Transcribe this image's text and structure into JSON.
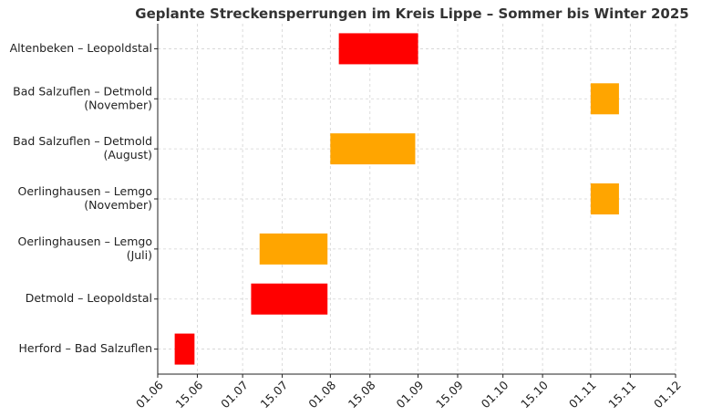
{
  "chart_data": {
    "type": "gantt",
    "title": "Geplante Streckensperrungen im Kreis Lippe – Sommer bis Winter 2025",
    "xlabel": "",
    "ylabel": "",
    "xlim": [
      "2025-06-01",
      "2025-12-01"
    ],
    "x_ticks": [
      "01.06",
      "15.06",
      "01.07",
      "15.07",
      "01.08",
      "15.08",
      "01.09",
      "15.09",
      "01.10",
      "15.10",
      "01.11",
      "15.11",
      "01.12"
    ],
    "grid": true,
    "colors": {
      "red": "#ff0000",
      "orange": "#ffa500"
    },
    "tasks": [
      {
        "label": [
          "Altenbeken – Leopoldstal"
        ],
        "start": "2025-08-04",
        "end": "2025-09-01",
        "color": "#ff0000"
      },
      {
        "label": [
          "Bad Salzuflen – Detmold",
          "(November)"
        ],
        "start": "2025-11-01",
        "end": "2025-11-11",
        "color": "#ffa500"
      },
      {
        "label": [
          "Bad Salzuflen – Detmold",
          "(August)"
        ],
        "start": "2025-08-01",
        "end": "2025-08-31",
        "color": "#ffa500"
      },
      {
        "label": [
          "Oerlinghausen – Lemgo",
          "(November)"
        ],
        "start": "2025-11-01",
        "end": "2025-11-11",
        "color": "#ffa500"
      },
      {
        "label": [
          "Oerlinghausen – Lemgo",
          "(Juli)"
        ],
        "start": "2025-07-07",
        "end": "2025-07-31",
        "color": "#ffa500"
      },
      {
        "label": [
          "Detmold – Leopoldstal"
        ],
        "start": "2025-07-04",
        "end": "2025-07-31",
        "color": "#ff0000"
      },
      {
        "label": [
          "Herford – Bad Salzuflen"
        ],
        "start": "2025-06-07",
        "end": "2025-06-14",
        "color": "#ff0000"
      }
    ]
  }
}
